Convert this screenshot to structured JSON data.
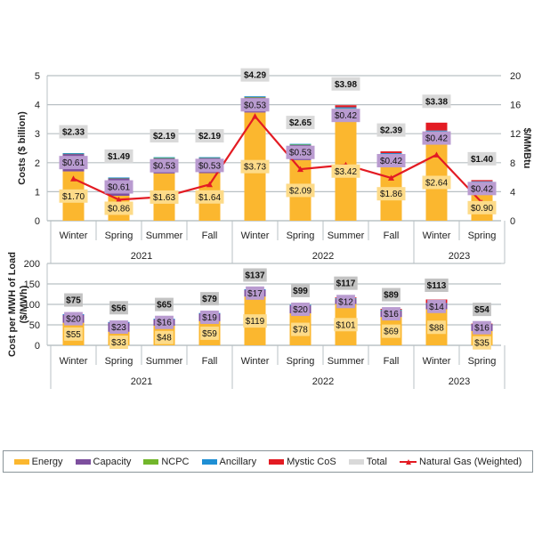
{
  "colors": {
    "energy": "#fbb72f",
    "energy_label_bg": "#fddb89",
    "capacity": "#7d4f9e",
    "capacity_label_bg": "#b99bd0",
    "ncpc": "#72b62b",
    "ancillary": "#1f8fd4",
    "mystic": "#e31b23",
    "total_label_bg": "#d9d9d9",
    "total_label_bg_lower": "#c3c3c3",
    "gas": "#e31b23",
    "grid": "#b9c0c4"
  },
  "chart_data": [
    {
      "type": "bar",
      "stacked": true,
      "title": "",
      "categories": [
        "Winter",
        "Spring",
        "Summer",
        "Fall",
        "Winter",
        "Spring",
        "Summer",
        "Fall",
        "Winter",
        "Spring"
      ],
      "category_groups": [
        {
          "label": "2021",
          "span": 4
        },
        {
          "label": "2022",
          "span": 4
        },
        {
          "label": "2023",
          "span": 2
        }
      ],
      "ylabel": "Costs ($ billion)",
      "ylim": [
        0,
        5
      ],
      "yticks": [
        0,
        1,
        2,
        3,
        4,
        5
      ],
      "y2label": "$/MMBtu",
      "y2lim": [
        0,
        20
      ],
      "y2ticks": [
        0,
        4,
        8,
        12,
        16,
        20
      ],
      "grid": true,
      "series": [
        {
          "name": "Energy",
          "values": [
            1.7,
            0.86,
            1.63,
            1.64,
            3.73,
            2.09,
            3.42,
            1.86,
            2.64,
            0.9
          ],
          "labels": [
            "$1.70",
            "$0.86",
            "$1.63",
            "$1.64",
            "$3.73",
            "$2.09",
            "$3.42",
            "$1.86",
            "$2.64",
            "$0.90"
          ]
        },
        {
          "name": "Capacity",
          "values": [
            0.61,
            0.61,
            0.53,
            0.53,
            0.53,
            0.53,
            0.42,
            0.42,
            0.42,
            0.42
          ],
          "labels": [
            "$0.61",
            "$0.61",
            "$0.53",
            "$0.53",
            "$0.53",
            "$0.53",
            "$0.42",
            "$0.42",
            "$0.42",
            "$0.42"
          ]
        },
        {
          "name": "NCPC",
          "values": [
            0.01,
            0.01,
            0.01,
            0.01,
            0.01,
            0.01,
            0.03,
            0.02,
            0.02,
            0.02
          ]
        },
        {
          "name": "Ancillary",
          "values": [
            0.01,
            0.01,
            0.02,
            0.01,
            0.02,
            0.02,
            0.04,
            0.03,
            0.03,
            0.02
          ]
        },
        {
          "name": "Mystic CoS",
          "values": [
            0,
            0,
            0,
            0,
            0,
            0,
            0.07,
            0.06,
            0.27,
            0.04
          ]
        }
      ],
      "totals": {
        "name": "Total",
        "values": [
          2.33,
          1.49,
          2.19,
          2.19,
          4.29,
          2.65,
          3.98,
          2.39,
          3.38,
          1.4
        ],
        "labels": [
          "$2.33",
          "$1.49",
          "$2.19",
          "$2.19",
          "$4.29",
          "$2.65",
          "$3.98",
          "$2.39",
          "$3.38",
          "$1.40"
        ]
      },
      "line": {
        "name": "Natural Gas (Weighted)",
        "axis": "secondary",
        "values": [
          5.8,
          2.9,
          3.3,
          5.0,
          14.4,
          7.1,
          7.7,
          5.9,
          9.1,
          2.5
        ]
      }
    },
    {
      "type": "bar",
      "stacked": true,
      "title": "",
      "categories": [
        "Winter",
        "Spring",
        "Summer",
        "Fall",
        "Winter",
        "Spring",
        "Summer",
        "Fall",
        "Winter",
        "Spring"
      ],
      "category_groups": [
        {
          "label": "2021",
          "span": 4
        },
        {
          "label": "2022",
          "span": 4
        },
        {
          "label": "2023",
          "span": 2
        }
      ],
      "ylabel": "Cost per MWH of Load ($/MWh)",
      "ylabel_lines": [
        "Cost per MWH of Load",
        "($/MWh)"
      ],
      "ylim": [
        0,
        200
      ],
      "yticks": [
        0,
        50,
        100,
        150,
        200
      ],
      "grid": true,
      "series": [
        {
          "name": "Energy",
          "values": [
            55,
            33,
            48,
            59,
            119,
            78,
            101,
            69,
            88,
            35
          ],
          "labels": [
            "$55",
            "$33",
            "$48",
            "$59",
            "$119",
            "$78",
            "$101",
            "$69",
            "$88",
            "$35"
          ]
        },
        {
          "name": "Capacity",
          "values": [
            20,
            23,
            16,
            19,
            17,
            20,
            12,
            16,
            14,
            16
          ],
          "labels": [
            "$20",
            "$23",
            "$16",
            "$19",
            "$17",
            "$20",
            "$12",
            "$16",
            "$14",
            "$16"
          ]
        },
        {
          "name": "NCPC",
          "values": [
            0,
            0,
            0,
            0,
            0,
            0,
            1,
            1,
            0,
            0
          ]
        },
        {
          "name": "Ancillary",
          "values": [
            1,
            1,
            1,
            1,
            1,
            1,
            1,
            1,
            1,
            1
          ]
        },
        {
          "name": "Mystic CoS",
          "values": [
            0,
            0,
            0,
            0,
            0,
            0,
            2,
            2,
            9,
            1
          ]
        }
      ],
      "totals": {
        "name": "Total",
        "values": [
          75,
          56,
          65,
          79,
          137,
          99,
          117,
          89,
          113,
          54
        ],
        "labels": [
          "$75",
          "$56",
          "$65",
          "$79",
          "$137",
          "$99",
          "$117",
          "$89",
          "$113",
          "$54"
        ]
      }
    }
  ],
  "legend": {
    "position": "bottom",
    "items": [
      {
        "label": "Energy",
        "key": "energy"
      },
      {
        "label": "Capacity",
        "key": "capacity"
      },
      {
        "label": "NCPC",
        "key": "ncpc"
      },
      {
        "label": "Ancillary",
        "key": "ancillary"
      },
      {
        "label": "Mystic CoS",
        "key": "mystic"
      },
      {
        "label": "Total",
        "key": "total_label_bg"
      },
      {
        "label": "Natural Gas (Weighted)",
        "key": "gas"
      }
    ]
  }
}
